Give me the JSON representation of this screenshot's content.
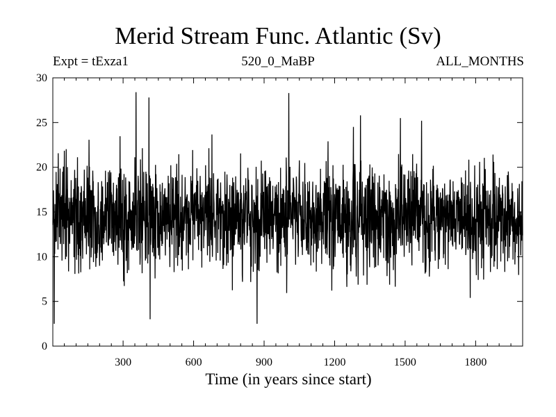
{
  "chart_data": {
    "type": "line",
    "title": "Merid Stream Func. Atlantic (Sv)",
    "subtitle_left": "Expt = tExza1",
    "subtitle_center": "520_0_MaBP",
    "subtitle_right": "ALL_MONTHS",
    "xlabel": "Time (in years since start)",
    "ylabel": "",
    "xlim": [
      1,
      2000
    ],
    "ylim": [
      0,
      30
    ],
    "x_ticks": [
      300,
      600,
      900,
      1200,
      1500,
      1800
    ],
    "y_ticks": [
      0,
      5,
      10,
      15,
      20,
      25,
      30
    ],
    "grid": false,
    "series": [
      {
        "n_points": 2000,
        "mean": 14.5,
        "typical_range": [
          7,
          22
        ],
        "min": 2.5,
        "max": 28.4,
        "color": "#000000",
        "notable_points": [
          {
            "x": 7,
            "y": 2.5
          },
          {
            "x": 355,
            "y": 28.4
          },
          {
            "x": 410,
            "y": 27.8
          },
          {
            "x": 415,
            "y": 3.0
          },
          {
            "x": 870,
            "y": 2.5
          },
          {
            "x": 1005,
            "y": 28.3
          },
          {
            "x": 1310,
            "y": 25.8
          },
          {
            "x": 1480,
            "y": 25.5
          },
          {
            "x": 1570,
            "y": 25.2
          }
        ]
      }
    ]
  }
}
